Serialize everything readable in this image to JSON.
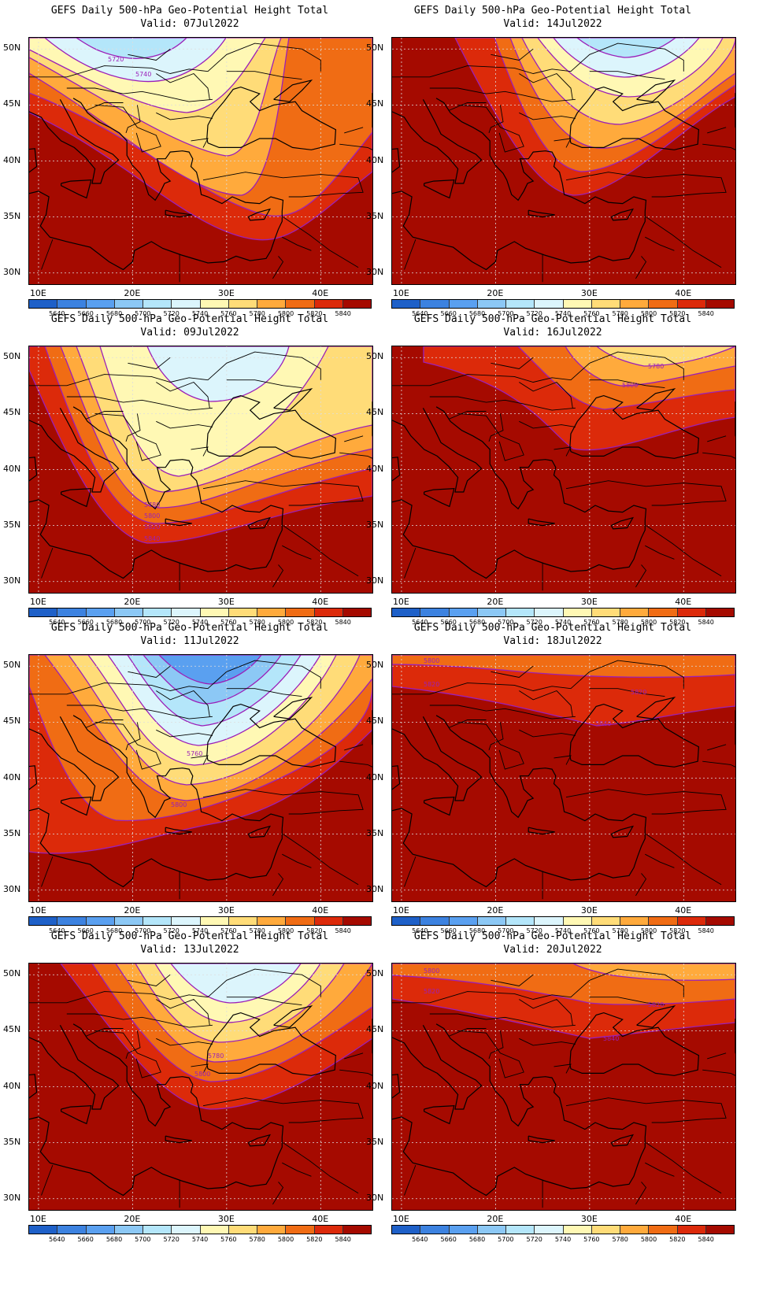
{
  "title_text": "GEFS Daily 500-hPa Geo-Potential Height Total",
  "colorbar": {
    "levels": [
      "5640",
      "5660",
      "5680",
      "5700",
      "5720",
      "5740",
      "5760",
      "5780",
      "5800",
      "5820",
      "5840"
    ],
    "colors": [
      "#1e60c8",
      "#3c82e0",
      "#5aa0f0",
      "#8cc8f5",
      "#b4e6fa",
      "#dcf5fc",
      "#fff8b4",
      "#ffdc78",
      "#ffaa3c",
      "#f06c14",
      "#dc2a0a",
      "#a50a00"
    ]
  },
  "axes": {
    "lat_labels": [
      "50N",
      "45N",
      "40N",
      "35N",
      "30N"
    ],
    "lon_labels": [
      "10E",
      "20E",
      "30E",
      "40E"
    ]
  },
  "panels": [
    {
      "valid": "Valid: 07Jul2022",
      "contour_labels": [
        "5720",
        "5740"
      ]
    },
    {
      "valid": "Valid: 14Jul2022",
      "contour_labels": []
    },
    {
      "valid": "Valid: 09Jul2022",
      "contour_labels": [
        "5780",
        "5800",
        "5820",
        "5840"
      ]
    },
    {
      "valid": "Valid: 16Jul2022",
      "contour_labels": [
        "5780",
        "5800"
      ]
    },
    {
      "valid": "Valid: 11Jul2022",
      "contour_labels": [
        "5760",
        "5800"
      ]
    },
    {
      "valid": "Valid: 18Jul2022",
      "contour_labels": [
        "5800",
        "5820",
        "5820",
        "5840"
      ]
    },
    {
      "valid": "Valid: 13Jul2022",
      "contour_labels": [
        "5780",
        "5800"
      ]
    },
    {
      "valid": "Valid: 20Jul2022",
      "contour_labels": [
        "5800",
        "5820",
        "5820",
        "5840"
      ]
    }
  ]
}
